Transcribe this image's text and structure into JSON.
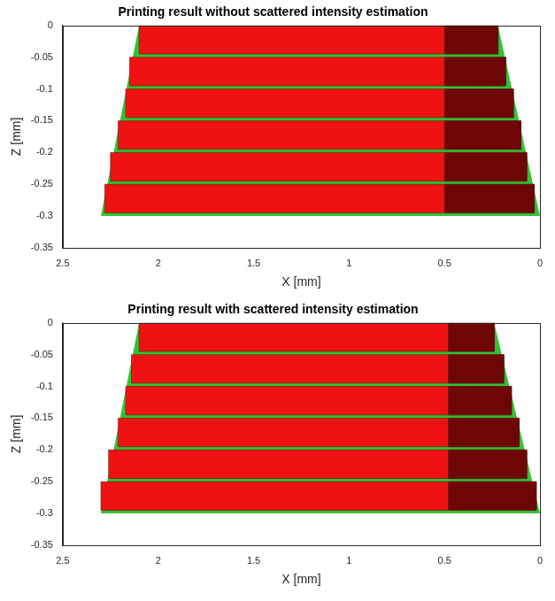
{
  "chart_data": [
    {
      "type": "area",
      "title": "Printing result without scattered intensity estimation",
      "x_label": "X [mm]",
      "y_label": "Z [mm]",
      "xlim": [
        2.5,
        0
      ],
      "xticks": [
        2.5,
        2,
        1.5,
        1,
        0.5,
        0
      ],
      "ylim": [
        -0.35,
        0
      ],
      "yticks": [
        -0.35,
        -0.3,
        -0.25,
        -0.2,
        -0.15,
        -0.1,
        -0.05,
        0
      ],
      "grid": false,
      "series": [
        {
          "color": "#33c233",
          "x": [
            2.1,
            0.22,
            0,
            2.3,
            2.1
          ],
          "values": [
            0,
            0,
            -0.3,
            -0.3,
            0
          ]
        },
        {
          "color": "#f01212",
          "x": [
            2.1,
            0.22,
            0.22,
            2.1,
            2.1
          ],
          "values": [
            0,
            0,
            -0.045,
            -0.045,
            0
          ]
        },
        {
          "color": "#f01212",
          "x": [
            2.15,
            0.18,
            0.18,
            2.15,
            2.15
          ],
          "values": [
            -0.05,
            -0.05,
            -0.095,
            -0.095,
            -0.05
          ]
        },
        {
          "color": "#f01212",
          "x": [
            2.17,
            0.14,
            0.14,
            2.17,
            2.17
          ],
          "values": [
            -0.1,
            -0.1,
            -0.145,
            -0.145,
            -0.1
          ]
        },
        {
          "color": "#f01212",
          "x": [
            2.21,
            0.1,
            0.1,
            2.21,
            2.21
          ],
          "values": [
            -0.15,
            -0.15,
            -0.195,
            -0.195,
            -0.15
          ]
        },
        {
          "color": "#f01212",
          "x": [
            2.25,
            0.07,
            0.07,
            2.25,
            2.25
          ],
          "values": [
            -0.2,
            -0.2,
            -0.245,
            -0.245,
            -0.2
          ]
        },
        {
          "color": "#f01212",
          "x": [
            2.28,
            0.03,
            0.03,
            2.28,
            2.28
          ],
          "values": [
            -0.25,
            -0.25,
            -0.295,
            -0.295,
            -0.25
          ]
        },
        {
          "color": "#6e0606",
          "x": [
            0.5,
            0.22,
            0.22,
            0.5,
            0.5
          ],
          "values": [
            0,
            0,
            -0.045,
            -0.045,
            0
          ]
        },
        {
          "color": "#6e0606",
          "x": [
            0.5,
            0.18,
            0.18,
            0.5,
            0.5
          ],
          "values": [
            -0.05,
            -0.05,
            -0.095,
            -0.095,
            -0.05
          ]
        },
        {
          "color": "#6e0606",
          "x": [
            0.5,
            0.14,
            0.14,
            0.5,
            0.5
          ],
          "values": [
            -0.1,
            -0.1,
            -0.145,
            -0.145,
            -0.1
          ]
        },
        {
          "color": "#6e0606",
          "x": [
            0.5,
            0.1,
            0.1,
            0.5,
            0.5
          ],
          "values": [
            -0.15,
            -0.15,
            -0.195,
            -0.195,
            -0.15
          ]
        },
        {
          "color": "#6e0606",
          "x": [
            0.5,
            0.07,
            0.07,
            0.5,
            0.5
          ],
          "values": [
            -0.2,
            -0.2,
            -0.245,
            -0.245,
            -0.2
          ]
        },
        {
          "color": "#6e0606",
          "x": [
            0.5,
            0.03,
            0.03,
            0.5,
            0.5
          ],
          "values": [
            -0.25,
            -0.25,
            -0.295,
            -0.295,
            -0.25
          ]
        }
      ]
    },
    {
      "type": "area",
      "title": "Printing result with scattered intensity estimation",
      "x_label": "X [mm]",
      "y_label": "Z [mm]",
      "xlim": [
        2.5,
        0
      ],
      "xticks": [
        2.5,
        2,
        1.5,
        1,
        0.5,
        0
      ],
      "ylim": [
        -0.35,
        0
      ],
      "yticks": [
        -0.35,
        -0.3,
        -0.25,
        -0.2,
        -0.15,
        -0.1,
        -0.05,
        0
      ],
      "grid": false,
      "series": [
        {
          "color": "#33c233",
          "x": [
            2.1,
            0.24,
            0,
            2.3,
            2.1
          ],
          "values": [
            0,
            0,
            -0.3,
            -0.3,
            0
          ]
        },
        {
          "color": "#f01212",
          "x": [
            2.1,
            0.24,
            0.24,
            2.1,
            2.1
          ],
          "values": [
            0,
            0,
            -0.045,
            -0.045,
            0
          ]
        },
        {
          "color": "#f01212",
          "x": [
            2.14,
            0.19,
            0.19,
            2.14,
            2.14
          ],
          "values": [
            -0.05,
            -0.05,
            -0.095,
            -0.095,
            -0.05
          ]
        },
        {
          "color": "#f01212",
          "x": [
            2.17,
            0.15,
            0.15,
            2.17,
            2.17
          ],
          "values": [
            -0.1,
            -0.1,
            -0.145,
            -0.145,
            -0.1
          ]
        },
        {
          "color": "#f01212",
          "x": [
            2.21,
            0.11,
            0.11,
            2.21,
            2.21
          ],
          "values": [
            -0.15,
            -0.15,
            -0.195,
            -0.195,
            -0.15
          ]
        },
        {
          "color": "#f01212",
          "x": [
            2.26,
            0.07,
            0.07,
            2.26,
            2.26
          ],
          "values": [
            -0.2,
            -0.2,
            -0.245,
            -0.245,
            -0.2
          ]
        },
        {
          "color": "#f01212",
          "x": [
            2.3,
            0.02,
            0.02,
            2.3,
            2.3
          ],
          "values": [
            -0.25,
            -0.25,
            -0.295,
            -0.295,
            -0.25
          ]
        },
        {
          "color": "#6e0606",
          "x": [
            0.48,
            0.24,
            0.24,
            0.48,
            0.48
          ],
          "values": [
            0,
            0,
            -0.045,
            -0.045,
            0
          ]
        },
        {
          "color": "#6e0606",
          "x": [
            0.48,
            0.19,
            0.19,
            0.48,
            0.48
          ],
          "values": [
            -0.05,
            -0.05,
            -0.095,
            -0.095,
            -0.05
          ]
        },
        {
          "color": "#6e0606",
          "x": [
            0.48,
            0.15,
            0.15,
            0.48,
            0.48
          ],
          "values": [
            -0.1,
            -0.1,
            -0.145,
            -0.145,
            -0.1
          ]
        },
        {
          "color": "#6e0606",
          "x": [
            0.48,
            0.11,
            0.11,
            0.48,
            0.48
          ],
          "values": [
            -0.15,
            -0.15,
            -0.195,
            -0.195,
            -0.15
          ]
        },
        {
          "color": "#6e0606",
          "x": [
            0.48,
            0.07,
            0.07,
            0.48,
            0.48
          ],
          "values": [
            -0.2,
            -0.2,
            -0.245,
            -0.245,
            -0.2
          ]
        },
        {
          "color": "#6e0606",
          "x": [
            0.48,
            0.02,
            0.02,
            0.48,
            0.48
          ],
          "values": [
            -0.25,
            -0.25,
            -0.295,
            -0.295,
            -0.25
          ]
        }
      ]
    }
  ]
}
